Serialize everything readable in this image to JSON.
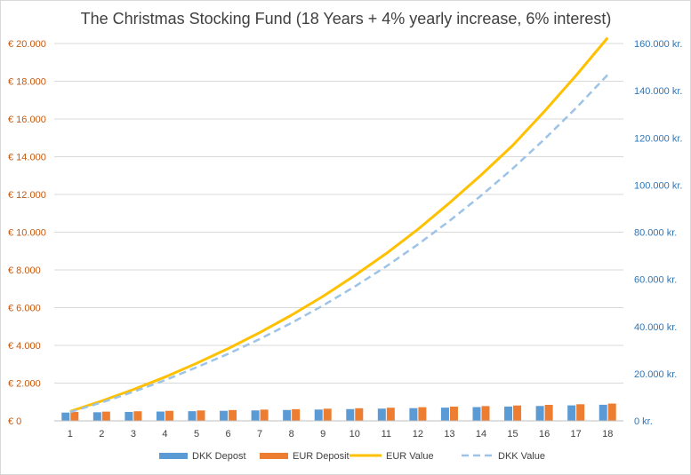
{
  "chart_data": {
    "type": "bar",
    "title": "The Christmas Stocking Fund (18 Years + 4% yearly increase, 6% interest)",
    "categories": [
      "1",
      "2",
      "3",
      "4",
      "5",
      "6",
      "7",
      "8",
      "9",
      "10",
      "11",
      "12",
      "13",
      "14",
      "15",
      "16",
      "17",
      "18"
    ],
    "y_left": {
      "ylim": [
        0,
        20000
      ],
      "ticks": [
        0,
        2000,
        4000,
        6000,
        8000,
        10000,
        12000,
        14000,
        16000,
        18000,
        20000
      ],
      "tick_labels": [
        "€ 0",
        "€ 2.000",
        "€ 4.000",
        "€ 6.000",
        "€ 8.000",
        "€ 10.000",
        "€ 12.000",
        "€ 14.000",
        "€ 16.000",
        "€ 18.000",
        "€ 20.000"
      ],
      "color": "#c55a11"
    },
    "y_right": {
      "ylim": [
        0,
        160000
      ],
      "ticks": [
        0,
        20000,
        40000,
        60000,
        80000,
        100000,
        120000,
        140000,
        160000
      ],
      "tick_labels": [
        "0 kr.",
        "20.000 kr.",
        "40.000 kr.",
        "60.000 kr.",
        "80.000 kr.",
        "100.000 kr.",
        "120.000 kr.",
        "140.000 kr.",
        "160.000 kr."
      ],
      "color": "#2e75b6"
    },
    "series": [
      {
        "name": "DKK Depost",
        "type": "bar",
        "axis": "right",
        "color": "#5b9bd5",
        "values": [
          3500,
          3640,
          3786,
          3937,
          4095,
          4258,
          4429,
          4606,
          4790,
          4982,
          5181,
          5388,
          5604,
          5828,
          6061,
          6303,
          6556,
          6818
        ]
      },
      {
        "name": "EUR Deposit",
        "type": "bar",
        "axis": "left",
        "color": "#ed7d31",
        "values": [
          470,
          489,
          508,
          529,
          550,
          572,
          595,
          618,
          643,
          669,
          696,
          724,
          752,
          782,
          814,
          846,
          880,
          915
        ]
      },
      {
        "name": "EUR Value",
        "type": "line",
        "axis": "left",
        "color": "#ffc000",
        "dashed": false,
        "values": [
          500,
          1050,
          1660,
          2320,
          3050,
          3830,
          4680,
          5600,
          6600,
          7700,
          8870,
          10150,
          11550,
          13030,
          14600,
          16400,
          18300,
          20300
        ]
      },
      {
        "name": "DKK Value",
        "type": "line",
        "axis": "right",
        "color": "#9dc3e6",
        "dashed": true,
        "values": [
          3710,
          7790,
          12300,
          17230,
          22700,
          28400,
          34700,
          41500,
          48900,
          56900,
          65500,
          74800,
          84800,
          95500,
          107000,
          119400,
          132600,
          146700
        ]
      }
    ],
    "legend_position": "bottom",
    "grid": true
  }
}
